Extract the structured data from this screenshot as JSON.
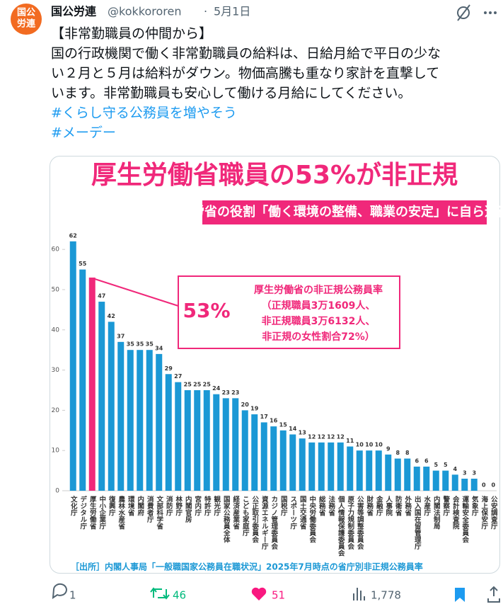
{
  "tweet": {
    "avatar_text": [
      "国公",
      "労連"
    ],
    "name": "国公労連",
    "handle": "@kokkororen",
    "separator": "·",
    "date": "5月1日",
    "body": [
      "【非常勤職員の仲間から】",
      "国の行政機関で働く非常勤職員の給料は、日給月給で平日の少な",
      "い２月と５月は給料がダウン。物価高騰も重なり家計を直撃して",
      "います。非常勤職員も安心して働ける月給にしてください。"
    ],
    "hashtags": [
      "#くらし守る公務員を増やそう",
      "#メーデー"
    ],
    "stats": {
      "replies": "1",
      "retweets": "46",
      "likes": "51",
      "views": "1,778"
    }
  },
  "chart_data": {
    "type": "bar",
    "title": "厚生労働省職員の53%が非正規",
    "subtitle": "厚労省の役割「働く環境の整備、職業の安定」に自ら逆行",
    "categories": [
      "文化庁",
      "デジタル庁",
      "厚生労働省",
      "中小企業庁",
      "復興庁",
      "農林水産省",
      "環境省",
      "内閣府",
      "消費者庁",
      "文部科学省",
      "消防庁",
      "林野庁",
      "内閣官房",
      "宮内庁",
      "特許庁",
      "観光庁",
      "国家公務員全体",
      "経済産業省",
      "こども家庭庁",
      "公正取引委員会",
      "資源エネルギー庁",
      "カジノ管理委員会",
      "国税庁",
      "スポーツ庁",
      "国土交通省",
      "中央労働委員会",
      "総務省",
      "法務省",
      "個人情報保護委員会",
      "原子力規制委員会",
      "公害等調整委員会",
      "財務省",
      "金融庁",
      "人事院",
      "防衛省",
      "外務省",
      "出入国在留管理庁",
      "水産庁",
      "内閣法制局",
      "警察庁",
      "会計検査院",
      "運輸安全委員会",
      "気象庁",
      "海上保安庁",
      "公安調査庁"
    ],
    "values": [
      62,
      55,
      53,
      47,
      42,
      37,
      35,
      35,
      35,
      34,
      29,
      27,
      25,
      25,
      25,
      24,
      23,
      23,
      20,
      19,
      17,
      16,
      15,
      14,
      13,
      12,
      12,
      12,
      12,
      11,
      10,
      10,
      10,
      9,
      8,
      8,
      6,
      6,
      5,
      5,
      4,
      3,
      3,
      0,
      0
    ],
    "value_labels": [
      "62",
      "55",
      null,
      "47",
      "42",
      "37",
      "35",
      "35",
      "35",
      "34",
      "29",
      "27",
      "25",
      "25",
      "25",
      "24",
      "23",
      "23",
      "20",
      "19",
      "17",
      "16",
      "15",
      "14",
      "13",
      "12",
      "12",
      "12",
      "12",
      "11",
      "10",
      "10",
      "10",
      "9",
      "8",
      "8",
      "6",
      "6",
      "5",
      "5",
      "4",
      "3",
      "3",
      "0",
      "0"
    ],
    "colors": [
      "#1b98d5",
      "#1b98d5",
      "#f0287a",
      "#1b98d5",
      "#1b98d5",
      "#1b98d5",
      "#1b98d5",
      "#1b98d5",
      "#1b98d5",
      "#1b98d5",
      "#1b98d5",
      "#1b98d5",
      "#1b98d5",
      "#1b98d5",
      "#1b98d5",
      "#1b98d5",
      "#1b98d5",
      "#1b98d5",
      "#1b98d5",
      "#1b98d5",
      "#1b98d5",
      "#1b98d5",
      "#1b98d5",
      "#1b98d5",
      "#1b98d5",
      "#1b98d5",
      "#1b98d5",
      "#1b98d5",
      "#1b98d5",
      "#1b98d5",
      "#1b98d5",
      "#1b98d5",
      "#1b98d5",
      "#1b98d5",
      "#1b98d5",
      "#1b98d5",
      "#1b98d5",
      "#1b98d5",
      "#1b98d5",
      "#1b98d5",
      "#1b98d5",
      "#1b98d5",
      "#1b98d5",
      "#1b98d5",
      "#1b98d5"
    ],
    "ylim": [
      0,
      65
    ],
    "yticks": [
      0,
      10,
      20,
      30,
      40,
      50,
      60
    ],
    "grid": false,
    "annotation": {
      "big": "53%",
      "lines": [
        "厚生労働省の非正規公務員率",
        "（正規職員3万1609人、",
        "非正規職員3万6132人、",
        "非正規の女性割合72%）"
      ]
    },
    "source": "［出所］内閣人事局「一般職国家公務員在職状況」2025年7月時点の省庁別非正規公務員率"
  }
}
